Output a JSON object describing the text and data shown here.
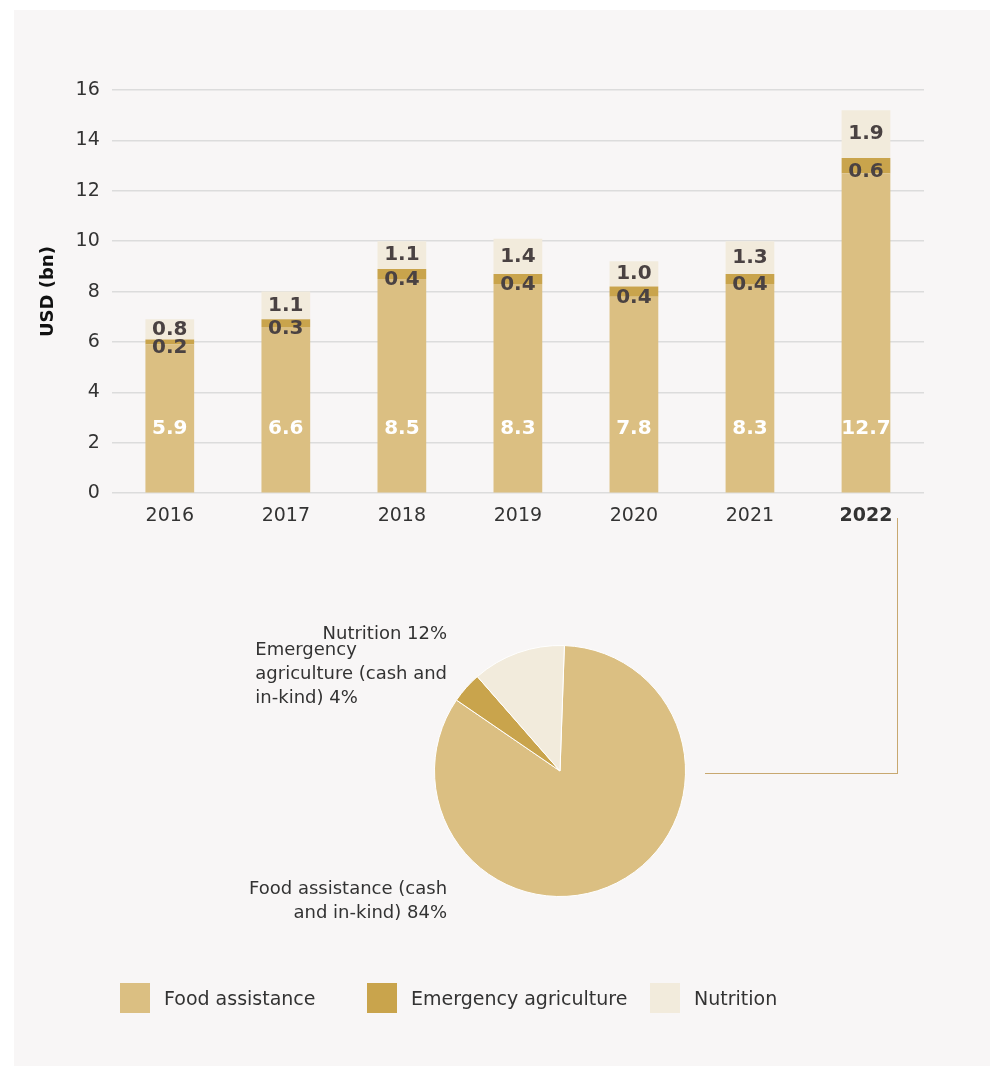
{
  "chart_data": [
    {
      "type": "bar",
      "stacked": true,
      "ylabel": "USD (bn)",
      "categories": [
        "2016",
        "2017",
        "2018",
        "2019",
        "2020",
        "2021",
        "2022"
      ],
      "series": [
        {
          "name": "Food assistance",
          "color": "#dbbf82",
          "values": [
            5.9,
            6.6,
            8.5,
            8.3,
            7.8,
            8.3,
            12.7
          ],
          "value_labels": [
            "5.9",
            "6.6",
            "8.5",
            "8.3",
            "7.8",
            "8.3",
            "12.7"
          ]
        },
        {
          "name": "Emergency agriculture",
          "color": "#c9a44c",
          "values": [
            0.2,
            0.3,
            0.4,
            0.4,
            0.4,
            0.4,
            0.6
          ],
          "value_labels": [
            "0.2",
            "0.3",
            "0.4",
            "0.4",
            "0.4",
            "0.4",
            "0.6"
          ]
        },
        {
          "name": "Nutrition",
          "color": "#f2ebdc",
          "values": [
            0.8,
            1.1,
            1.1,
            1.4,
            1.0,
            1.3,
            1.9
          ],
          "value_labels": [
            "0.8",
            "1.1",
            "1.1",
            "1.4",
            "1.0",
            "1.3",
            "1.9"
          ]
        }
      ],
      "ylim": [
        0,
        16
      ],
      "yticks": [
        0,
        2,
        4,
        6,
        8,
        10,
        12,
        14,
        16
      ],
      "grid": "y",
      "legend": "bottom"
    },
    {
      "type": "pie",
      "categories": [
        "Food assistance (cash and in-kind)",
        "Emergency agriculture (cash and in-kind)",
        "Nutrition"
      ],
      "values": [
        84,
        4,
        12
      ],
      "value_labels": [
        "84%",
        "4%",
        "12%"
      ],
      "colors": [
        "#dbbf82",
        "#c9a44c",
        "#f2ebdc"
      ]
    }
  ]
}
